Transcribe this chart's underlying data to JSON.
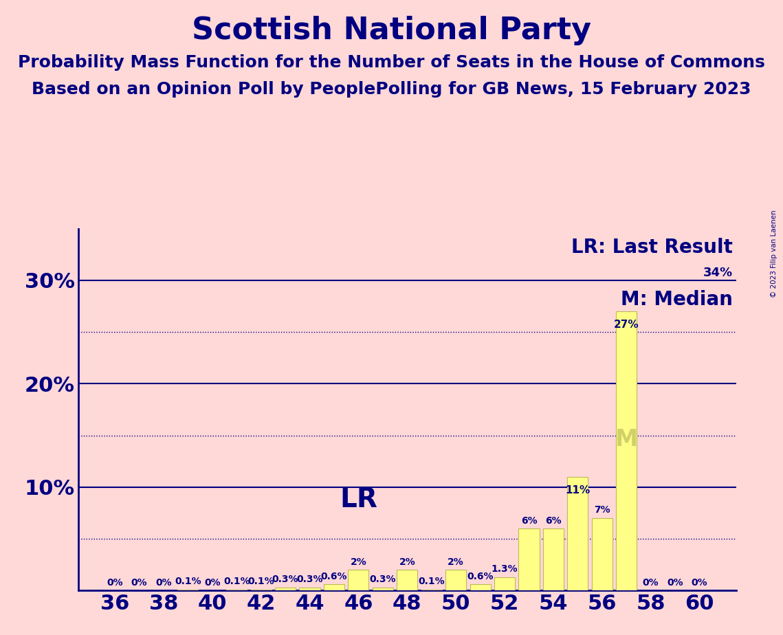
{
  "title": "Scottish National Party",
  "subtitle1": "Probability Mass Function for the Number of Seats in the House of Commons",
  "subtitle2": "Based on an Opinion Poll by PeoplePolling for GB News, 15 February 2023",
  "copyright": "© 2023 Filip van Laenen",
  "seats": [
    36,
    37,
    38,
    39,
    40,
    41,
    42,
    43,
    44,
    45,
    46,
    47,
    48,
    49,
    50,
    51,
    52,
    53,
    54,
    55,
    56,
    57,
    58,
    59,
    60
  ],
  "values": [
    0.0,
    0.0,
    0.0,
    0.1,
    0.0,
    0.1,
    0.1,
    0.3,
    0.3,
    0.6,
    2.0,
    0.3,
    2.0,
    0.1,
    2.0,
    0.6,
    1.3,
    6.0,
    6.0,
    11.0,
    7.0,
    27.0,
    0.0,
    0.0,
    0.0
  ],
  "labels": [
    "0%",
    "0%",
    "0%",
    "0.1%",
    "0%",
    "0.1%",
    "0.1%",
    "0.3%",
    "0.3%",
    "0.6%",
    "2%",
    "0.3%",
    "2%",
    "0.1%",
    "2%",
    "0.6%",
    "1.3%",
    "6%",
    "6%",
    "11%",
    "7%",
    "27%",
    "0%",
    "0%",
    "0%"
  ],
  "bar_color": "#ffff88",
  "last_result_seat": 46,
  "median_seat": 57,
  "background_color": "#ffd8d8",
  "axis_color": "#000080",
  "text_color": "#000080",
  "grid_color": "#000080",
  "ylim": [
    0,
    35
  ],
  "xlabel_seats": [
    36,
    38,
    40,
    42,
    44,
    46,
    48,
    50,
    52,
    54,
    56,
    58,
    60
  ],
  "title_fontsize": 32,
  "subtitle_fontsize": 18,
  "bar_label_fontsize": 10,
  "legend_fontsize": 20,
  "lr_fontsize": 28,
  "m_color": "#cccc66"
}
